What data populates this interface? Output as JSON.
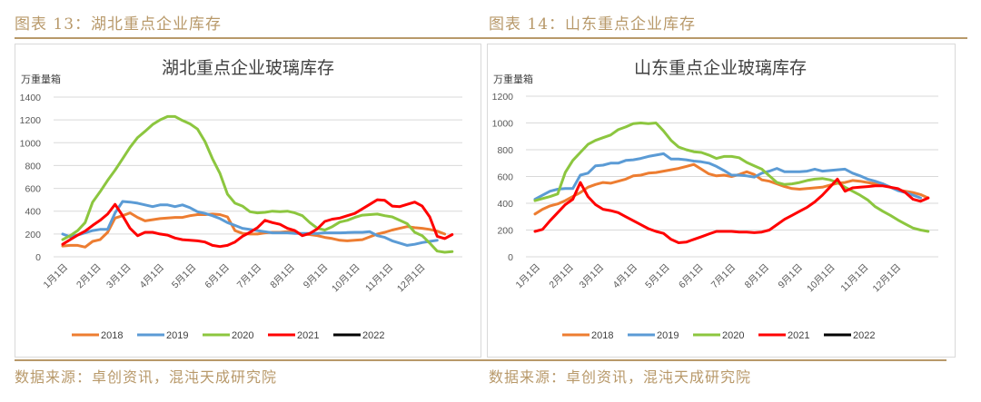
{
  "left": {
    "caption": "图表 13：湖北重点企业库存",
    "source": "数据来源：卓创资讯，混沌天成研究院"
  },
  "right": {
    "caption": "图表 14：山东重点企业库存",
    "source": "数据来源：卓创资讯，混沌天成研究院"
  },
  "colors": {
    "2018": "#ed7d31",
    "2019": "#5b9bd5",
    "2020": "#8cc63f",
    "2021": "#ff0000",
    "2022": "#000000",
    "accent": "#b8996a"
  },
  "chart_data": [
    {
      "type": "line",
      "title": "湖北重点企业玻璃库存",
      "ylabel": "万重量箱",
      "xlabel": "",
      "ylim": [
        0,
        1400
      ],
      "yticks": [
        0,
        200,
        400,
        600,
        800,
        1000,
        1200,
        1400
      ],
      "xlim": [
        0,
        365
      ],
      "xtick_days": [
        0,
        31,
        59,
        90,
        120,
        151,
        181,
        212,
        243,
        273,
        304,
        334
      ],
      "xtick_labels": [
        "1月1日",
        "2月1日",
        "3月1日",
        "4月1日",
        "5月1日",
        "6月1日",
        "7月1日",
        "8月1日",
        "9月1日",
        "10月1日",
        "11月1日",
        "12月1日"
      ],
      "grid": true,
      "legend_position": "bottom",
      "series": [
        {
          "name": "2018",
          "x": [
            0,
            7,
            14,
            21,
            28,
            35,
            42,
            49,
            56,
            63,
            70,
            77,
            84,
            91,
            98,
            105,
            112,
            119,
            126,
            133,
            140,
            147,
            154,
            161,
            168,
            175,
            182,
            189,
            196,
            203,
            210,
            217,
            224,
            231,
            238,
            245,
            252,
            259,
            266,
            273,
            280,
            287,
            294,
            301,
            308,
            315,
            322,
            329,
            336,
            343,
            350,
            357
          ],
          "values": [
            95,
            100,
            100,
            85,
            135,
            150,
            215,
            340,
            360,
            385,
            345,
            315,
            325,
            335,
            340,
            345,
            345,
            360,
            370,
            370,
            375,
            370,
            350,
            230,
            205,
            200,
            200,
            210,
            215,
            215,
            220,
            215,
            200,
            195,
            185,
            170,
            160,
            145,
            140,
            145,
            150,
            175,
            200,
            215,
            235,
            250,
            265,
            255,
            250,
            240,
            225,
            200
          ]
        },
        {
          "name": "2019",
          "x": [
            0,
            7,
            14,
            21,
            28,
            35,
            42,
            49,
            56,
            63,
            70,
            77,
            84,
            91,
            98,
            105,
            112,
            119,
            126,
            133,
            140,
            147,
            154,
            161,
            168,
            175,
            182,
            189,
            196,
            203,
            210,
            217,
            224,
            231,
            238,
            245,
            252,
            259,
            266,
            273,
            280,
            287,
            294,
            301,
            308,
            315,
            322,
            329,
            336,
            343,
            350
          ],
          "values": [
            200,
            175,
            190,
            210,
            230,
            240,
            240,
            385,
            485,
            480,
            470,
            455,
            440,
            455,
            455,
            440,
            455,
            430,
            395,
            380,
            360,
            335,
            300,
            275,
            250,
            240,
            230,
            220,
            210,
            210,
            210,
            205,
            205,
            205,
            205,
            210,
            210,
            210,
            212,
            215,
            215,
            220,
            185,
            170,
            140,
            120,
            100,
            110,
            125,
            135,
            145
          ]
        },
        {
          "name": "2020",
          "x": [
            0,
            7,
            14,
            21,
            28,
            35,
            42,
            49,
            56,
            63,
            70,
            77,
            84,
            91,
            98,
            105,
            112,
            119,
            126,
            133,
            140,
            147,
            154,
            161,
            168,
            175,
            182,
            189,
            196,
            203,
            210,
            217,
            224,
            231,
            238,
            245,
            252,
            259,
            266,
            273,
            280,
            287,
            294,
            301,
            308,
            315,
            322,
            329,
            336,
            343,
            350,
            357,
            364
          ],
          "values": [
            150,
            185,
            230,
            300,
            480,
            570,
            670,
            760,
            860,
            960,
            1045,
            1100,
            1160,
            1200,
            1230,
            1230,
            1195,
            1165,
            1120,
            1010,
            860,
            730,
            550,
            470,
            445,
            395,
            385,
            390,
            400,
            395,
            400,
            385,
            360,
            300,
            250,
            235,
            265,
            305,
            320,
            345,
            365,
            370,
            375,
            360,
            350,
            320,
            290,
            215,
            185,
            120,
            50,
            40,
            45
          ]
        },
        {
          "name": "2021",
          "x": [
            0,
            7,
            14,
            21,
            28,
            35,
            42,
            49,
            56,
            63,
            70,
            77,
            84,
            91,
            98,
            105,
            112,
            119,
            126,
            133,
            140,
            147,
            154,
            161,
            168,
            175,
            182,
            189,
            196,
            203,
            210,
            217,
            224,
            231,
            238,
            245,
            252,
            259,
            266,
            273,
            280,
            287,
            294,
            301,
            308,
            315,
            322,
            329,
            336,
            343,
            350,
            357,
            364
          ],
          "values": [
            110,
            150,
            190,
            225,
            275,
            320,
            375,
            460,
            360,
            250,
            185,
            215,
            215,
            200,
            190,
            165,
            150,
            145,
            140,
            130,
            100,
            90,
            100,
            130,
            180,
            215,
            255,
            320,
            300,
            285,
            250,
            230,
            185,
            205,
            245,
            310,
            330,
            340,
            360,
            380,
            420,
            460,
            500,
            495,
            445,
            440,
            460,
            480,
            445,
            350,
            180,
            160,
            195
          ]
        },
        {
          "name": "2022",
          "x": [],
          "values": []
        }
      ]
    },
    {
      "type": "line",
      "title": "山东重点企业玻璃库存",
      "ylabel": "万重量箱",
      "xlabel": "",
      "ylim": [
        0,
        1200
      ],
      "yticks": [
        0,
        200,
        400,
        600,
        800,
        1000,
        1200
      ],
      "xlim": [
        0,
        365
      ],
      "xtick_days": [
        0,
        31,
        59,
        90,
        120,
        151,
        181,
        212,
        243,
        273,
        304,
        334
      ],
      "xtick_labels": [
        "1月1日",
        "2月1日",
        "3月1日",
        "4月1日",
        "5月1日",
        "6月1日",
        "7月1日",
        "8月1日",
        "9月1日",
        "10月1日",
        "11月1日",
        "12月1日"
      ],
      "grid": true,
      "legend_position": "bottom",
      "series": [
        {
          "name": "2018",
          "x": [
            0,
            7,
            14,
            21,
            28,
            35,
            42,
            49,
            56,
            63,
            70,
            77,
            84,
            91,
            98,
            105,
            112,
            119,
            126,
            133,
            140,
            147,
            154,
            161,
            168,
            175,
            182,
            189,
            196,
            203,
            210,
            217,
            224,
            231,
            238,
            245,
            252,
            259,
            266,
            273,
            280,
            287,
            294,
            301,
            308,
            315,
            322,
            329,
            336,
            343,
            350,
            357,
            364
          ],
          "values": [
            320,
            355,
            380,
            395,
            420,
            450,
            480,
            520,
            540,
            555,
            550,
            565,
            580,
            605,
            610,
            625,
            630,
            640,
            650,
            660,
            675,
            690,
            655,
            620,
            605,
            610,
            600,
            615,
            635,
            615,
            575,
            565,
            545,
            525,
            510,
            505,
            510,
            515,
            520,
            535,
            550,
            555,
            570,
            565,
            555,
            545,
            545,
            520,
            500,
            490,
            480,
            465,
            440
          ]
        },
        {
          "name": "2019",
          "x": [
            0,
            7,
            14,
            21,
            28,
            35,
            42,
            49,
            56,
            63,
            70,
            77,
            84,
            91,
            98,
            105,
            112,
            119,
            126,
            133,
            140,
            147,
            154,
            161,
            168,
            175,
            182,
            189,
            196,
            203,
            210,
            217,
            224,
            231,
            238,
            245,
            252,
            259,
            266,
            273,
            280,
            287,
            294,
            301,
            308,
            315,
            322,
            329,
            336,
            343,
            350,
            357
          ],
          "values": [
            430,
            460,
            490,
            505,
            510,
            510,
            610,
            625,
            680,
            685,
            700,
            700,
            720,
            725,
            735,
            750,
            760,
            770,
            730,
            730,
            725,
            715,
            710,
            700,
            675,
            645,
            610,
            610,
            605,
            595,
            625,
            640,
            660,
            635,
            635,
            635,
            640,
            655,
            640,
            645,
            650,
            655,
            625,
            605,
            580,
            565,
            545,
            520,
            495,
            480,
            460,
            440
          ]
        },
        {
          "name": "2020",
          "x": [
            0,
            7,
            14,
            21,
            28,
            35,
            42,
            49,
            56,
            63,
            70,
            77,
            84,
            91,
            98,
            105,
            112,
            119,
            126,
            133,
            140,
            147,
            154,
            161,
            168,
            175,
            182,
            189,
            196,
            203,
            210,
            217,
            224,
            231,
            238,
            245,
            252,
            259,
            266,
            273,
            280,
            287,
            294,
            301,
            308,
            315,
            322,
            329,
            336,
            343,
            350,
            357,
            364
          ],
          "values": [
            420,
            435,
            450,
            470,
            630,
            720,
            780,
            840,
            870,
            890,
            910,
            950,
            970,
            995,
            1000,
            995,
            1000,
            940,
            870,
            820,
            800,
            785,
            780,
            760,
            735,
            750,
            750,
            740,
            705,
            680,
            655,
            605,
            555,
            540,
            545,
            555,
            570,
            580,
            585,
            575,
            555,
            520,
            490,
            460,
            425,
            375,
            340,
            310,
            275,
            245,
            215,
            200,
            190
          ]
        },
        {
          "name": "2021",
          "x": [
            0,
            7,
            14,
            21,
            28,
            35,
            42,
            49,
            56,
            63,
            70,
            77,
            84,
            91,
            98,
            105,
            112,
            119,
            126,
            133,
            140,
            147,
            154,
            161,
            168,
            175,
            182,
            189,
            196,
            203,
            210,
            217,
            224,
            231,
            238,
            245,
            252,
            259,
            266,
            273,
            280,
            287,
            294,
            301,
            308,
            315,
            322,
            329,
            336,
            343,
            350,
            357,
            364
          ],
          "values": [
            190,
            205,
            270,
            330,
            390,
            430,
            555,
            450,
            390,
            355,
            345,
            330,
            300,
            270,
            240,
            210,
            190,
            175,
            130,
            105,
            110,
            130,
            150,
            170,
            190,
            190,
            190,
            185,
            185,
            180,
            185,
            200,
            240,
            280,
            310,
            340,
            370,
            410,
            460,
            520,
            580,
            490,
            515,
            520,
            525,
            530,
            530,
            520,
            510,
            480,
            430,
            415,
            440
          ]
        },
        {
          "name": "2022",
          "x": [],
          "values": []
        }
      ]
    }
  ]
}
